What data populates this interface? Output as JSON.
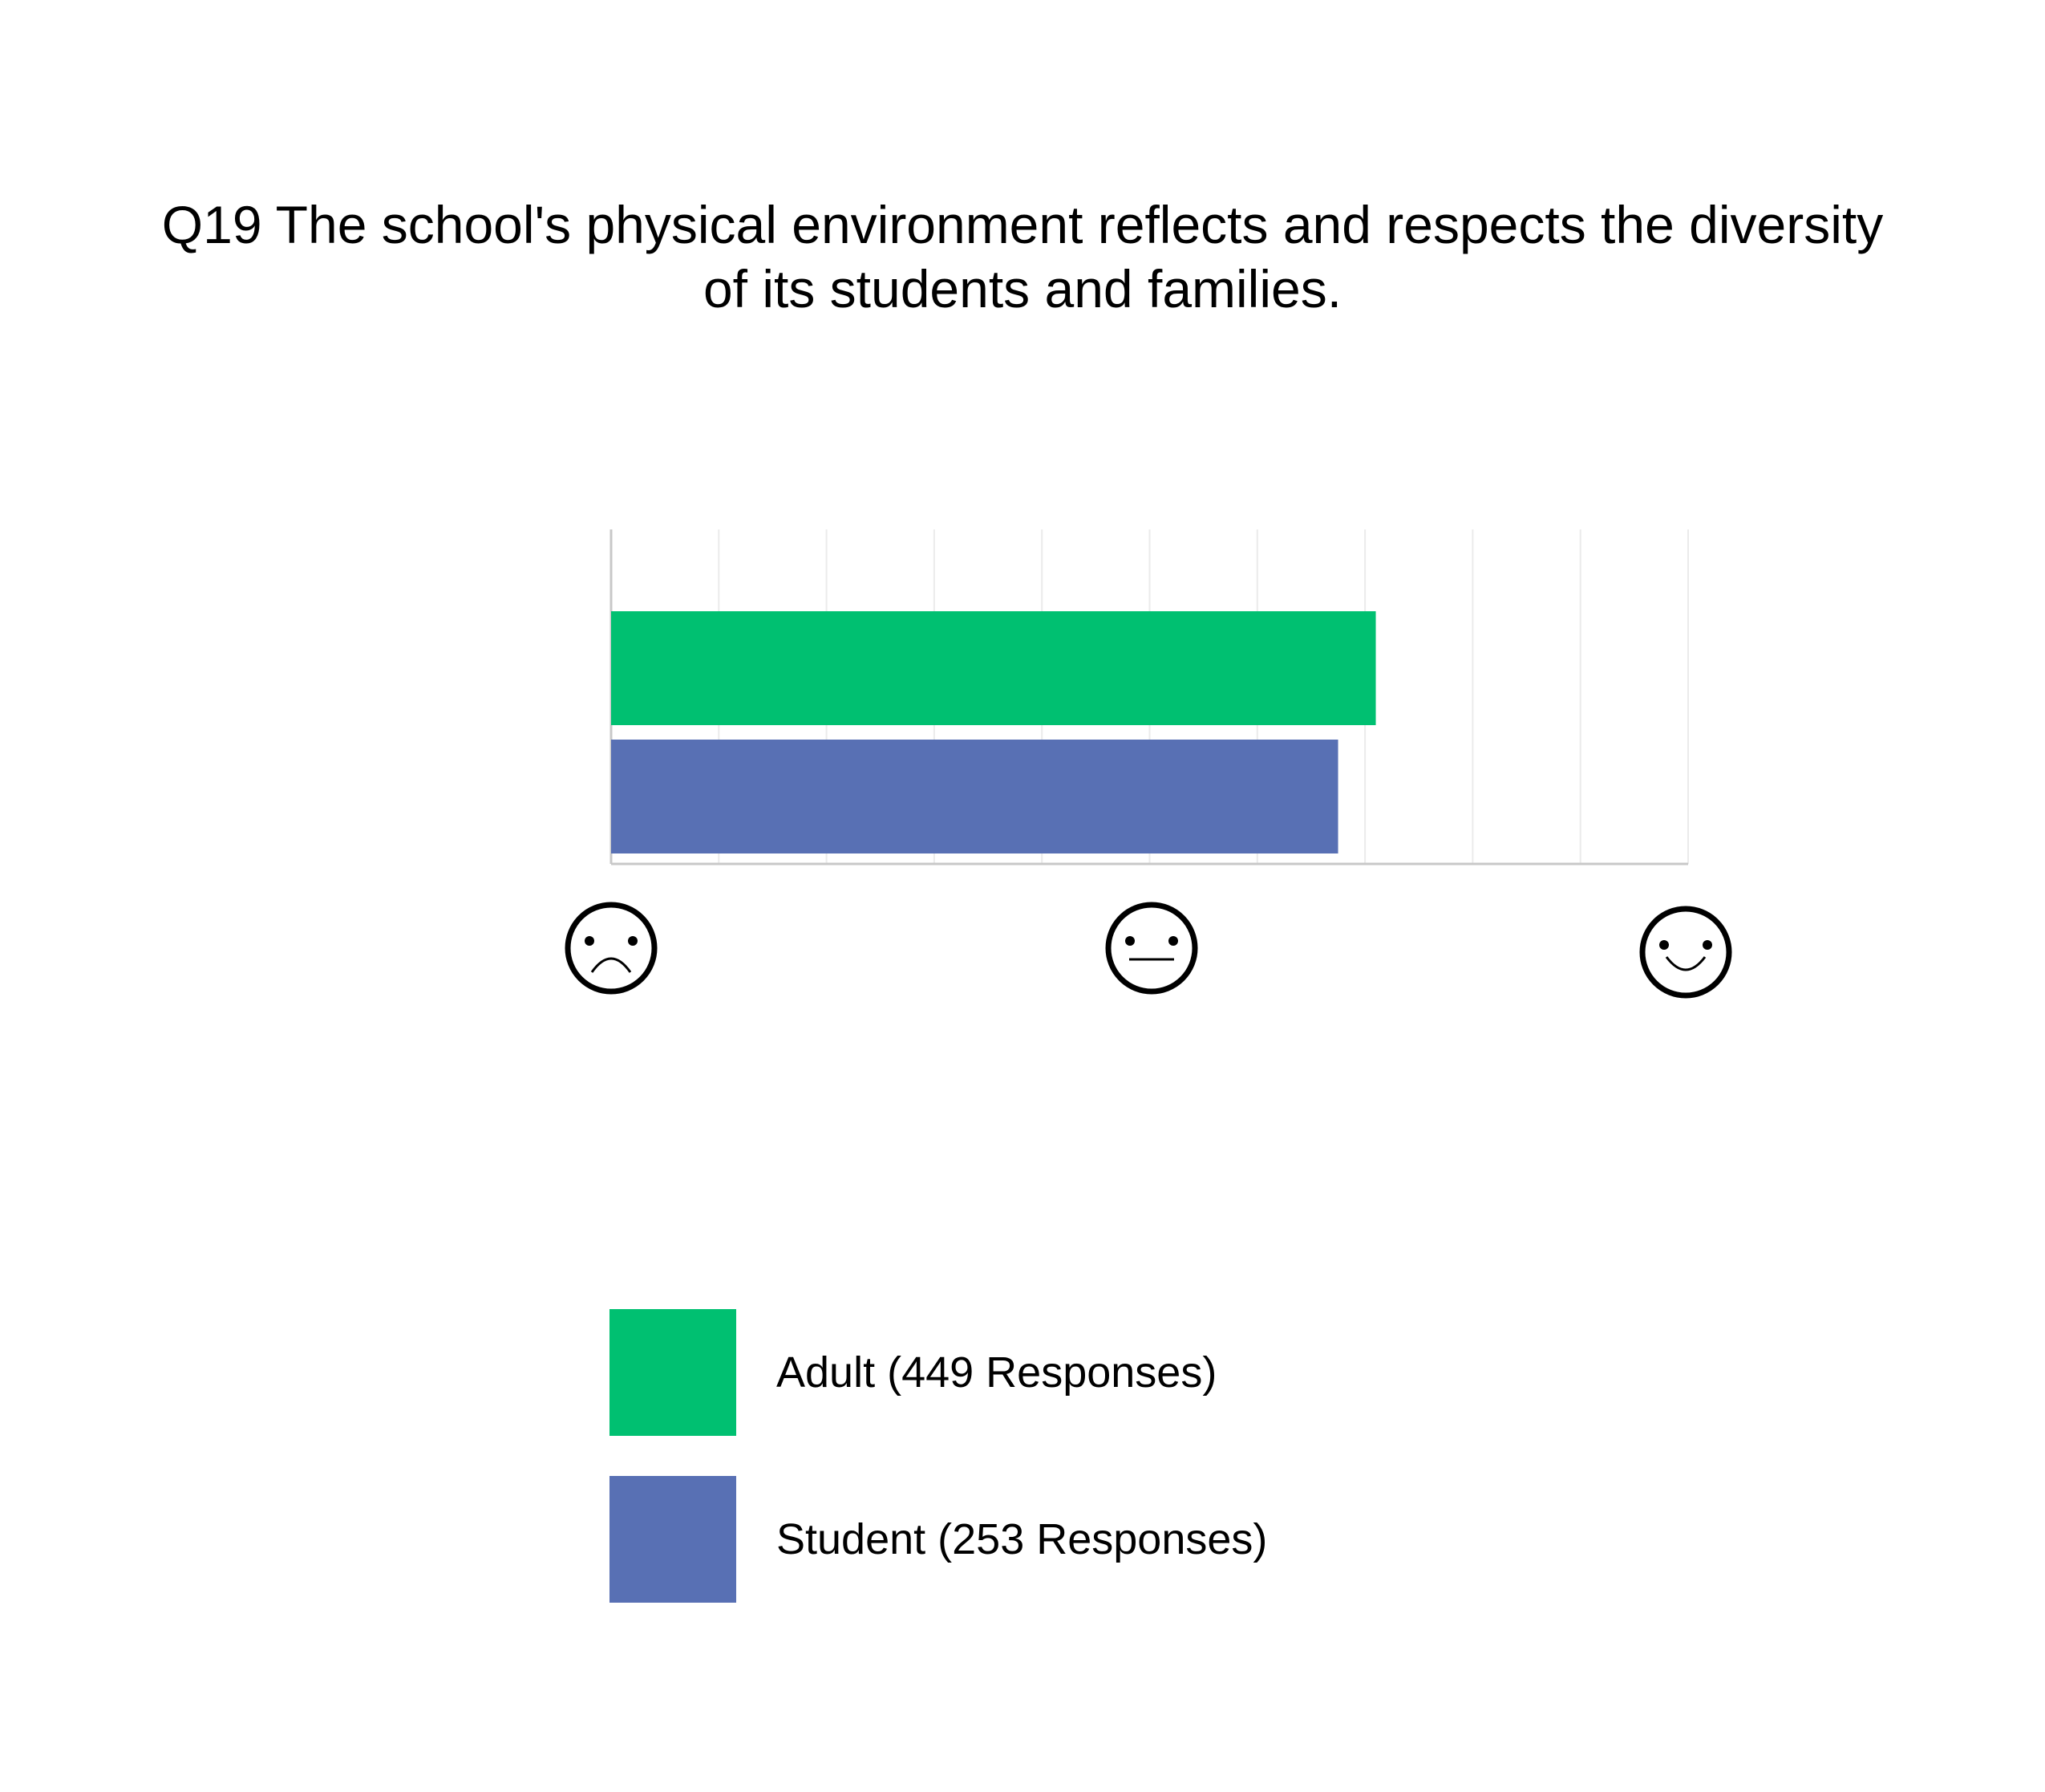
{
  "chart_data": {
    "type": "bar",
    "orientation": "horizontal",
    "title_lines": [
      "Q19 The school's physical environment reflects and respects the diversity",
      "of its students and families."
    ],
    "xlim": [
      1,
      5
    ],
    "x_axis_icons": [
      "sad-face",
      "neutral-face",
      "happy-face"
    ],
    "grid": true,
    "legend_position": "bottom",
    "series": [
      {
        "name": "Adult (449 Responses)",
        "value": 3.84,
        "color": "#00c071"
      },
      {
        "name": "Student (253 Responses)",
        "value": 3.7,
        "color": "#5870b4"
      }
    ]
  }
}
